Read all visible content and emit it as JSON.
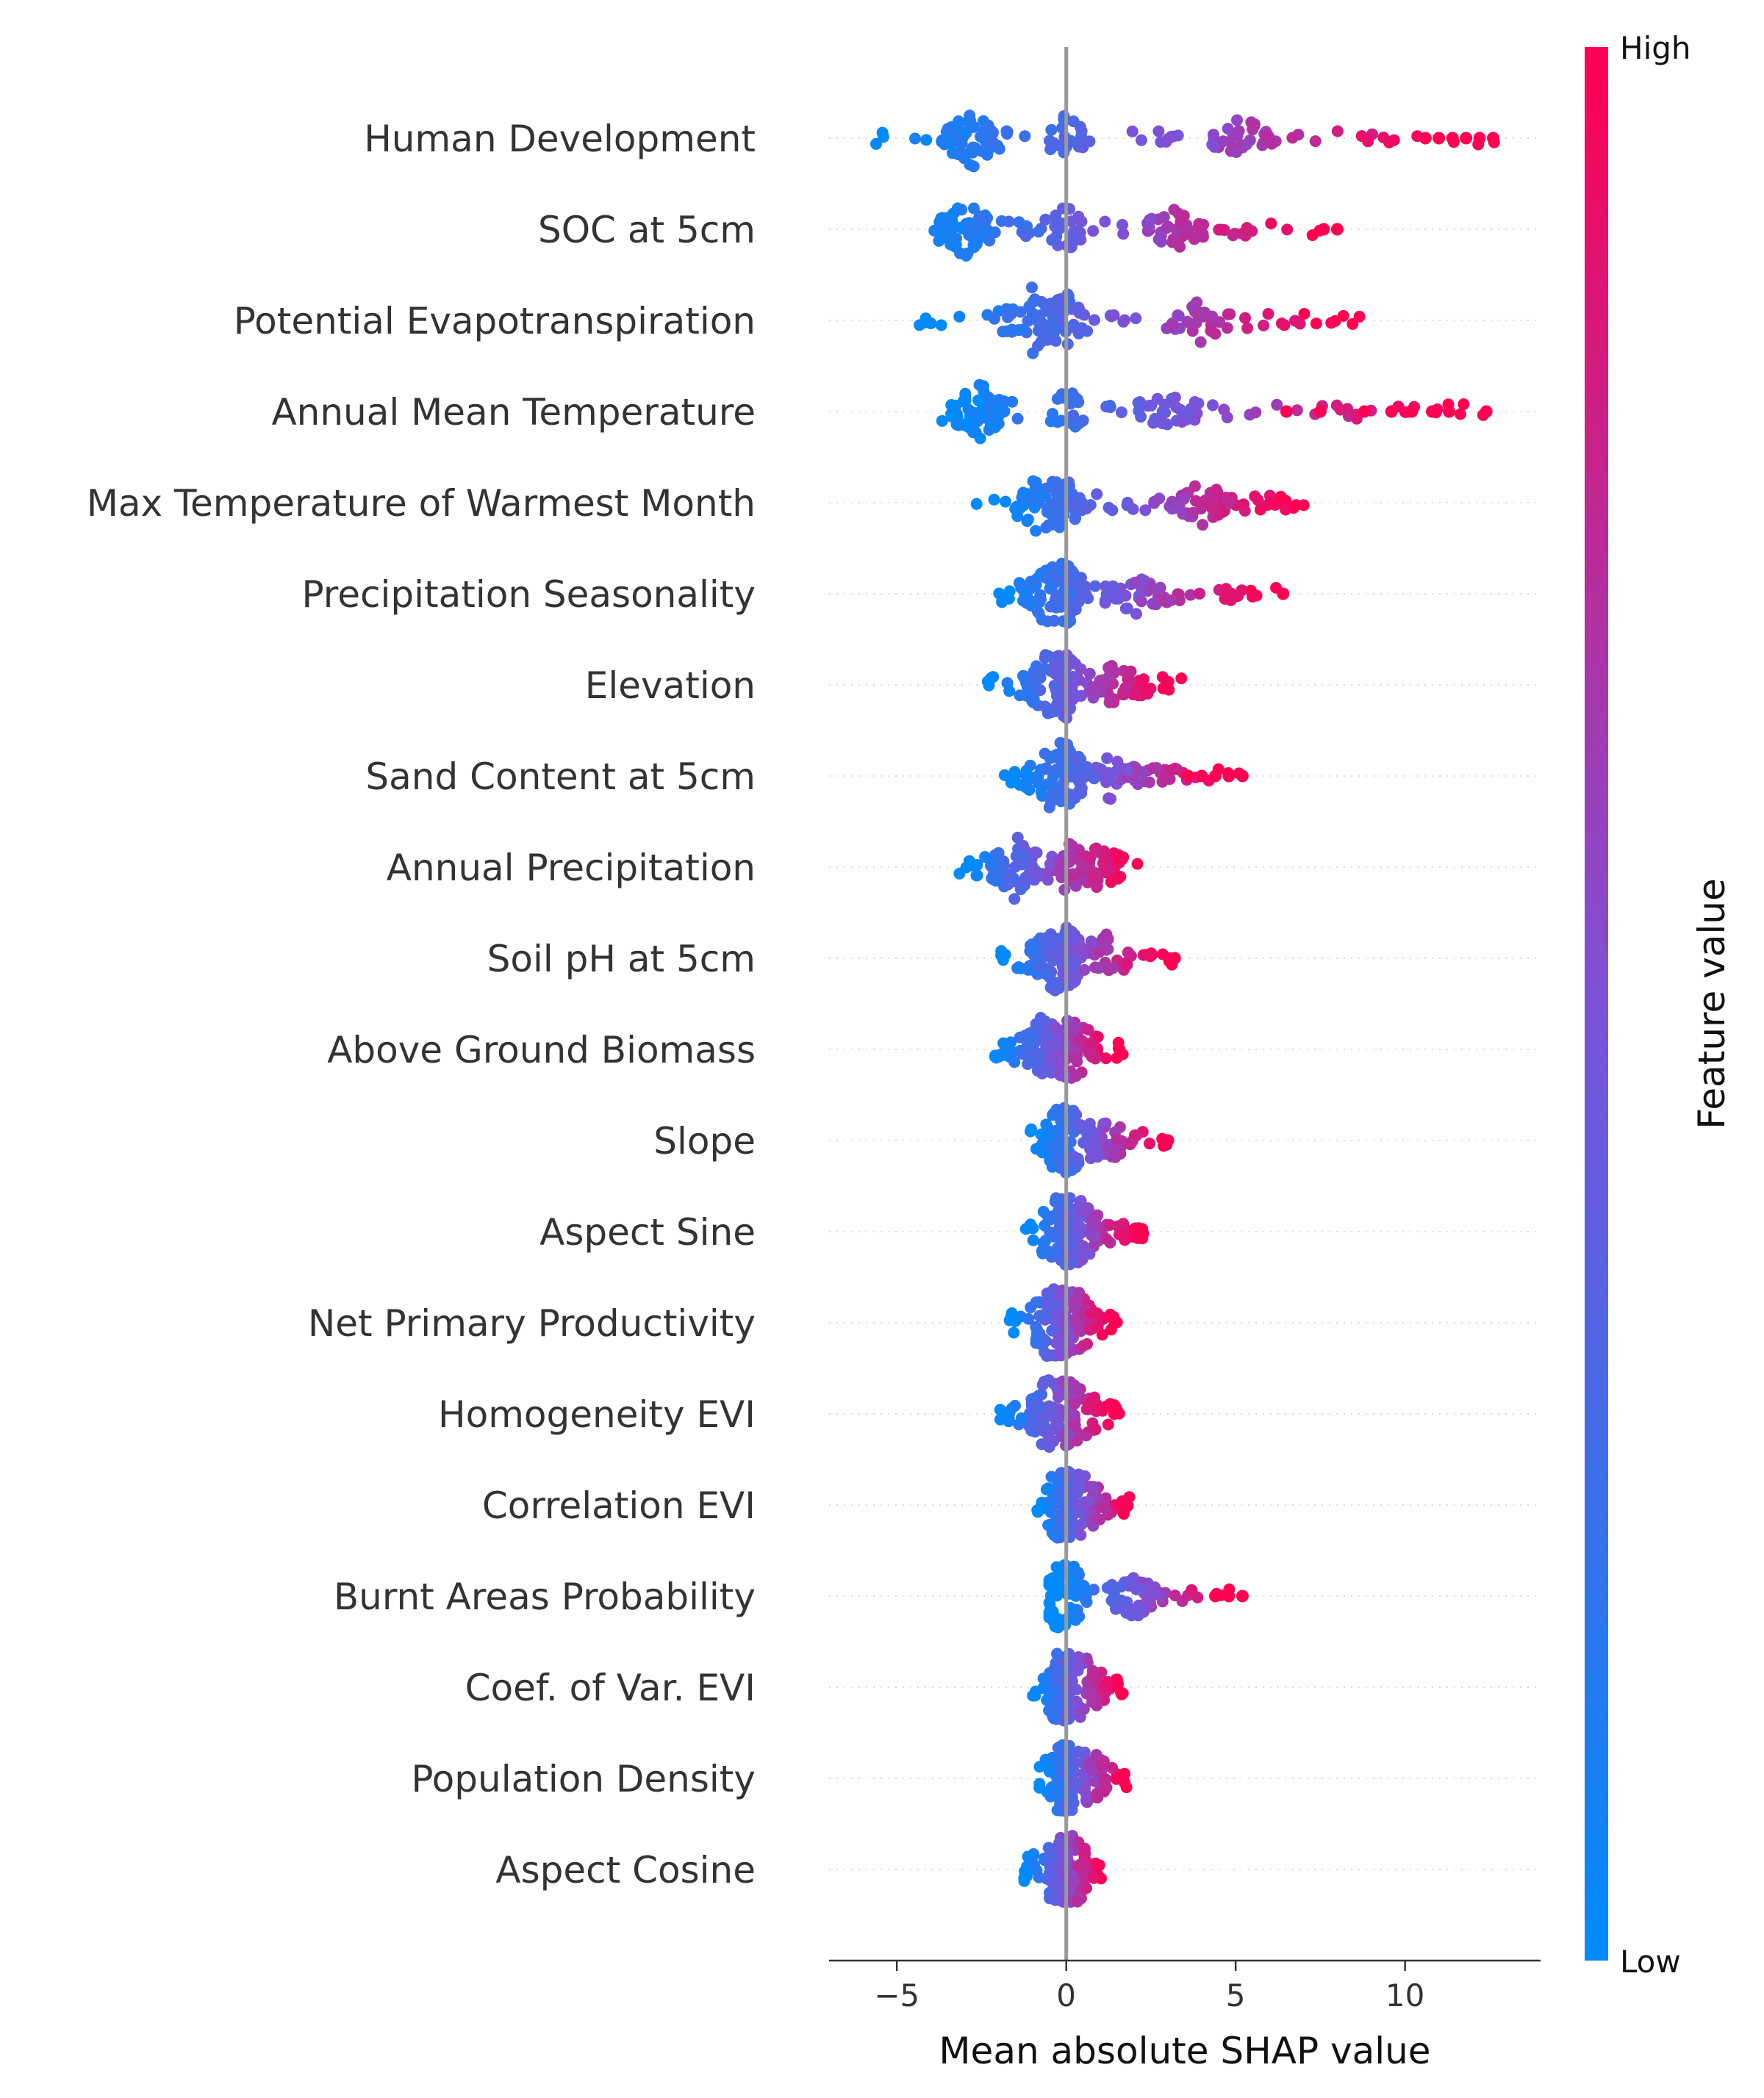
{
  "chart_data": {
    "type": "scatter",
    "subtype": "shap-beeswarm-summary",
    "title": "",
    "xlabel": "Mean absolute SHAP value",
    "xlim": [
      -7,
      14
    ],
    "xticks": [
      -5,
      0,
      5,
      10
    ],
    "xtick_labels": [
      "−5",
      "0",
      "5",
      "10"
    ],
    "zero_line": true,
    "grid": "dotted horizontal row guides",
    "legend": {
      "type": "colorbar",
      "placement": "right",
      "title": "Feature value",
      "high_label": "High",
      "low_label": "Low",
      "low_color": "#008BFB",
      "mid_color": "#7C52D8",
      "high_color": "#FF0052"
    },
    "features": [
      {
        "name": "Human Development",
        "min": -6.0,
        "max": 12.8,
        "low_center": -2.8,
        "high_center": 5.2,
        "outliers": [
          10.6,
          11.0,
          11.4,
          11.8,
          12.2,
          12.6
        ]
      },
      {
        "name": "SOC at 5cm",
        "min": -4.9,
        "max": 8.0,
        "low_center": -3.0,
        "high_center": 3.2,
        "outliers": [
          7.6,
          8.0
        ]
      },
      {
        "name": "Potential Evapotranspiration",
        "min": -4.5,
        "max": 8.9,
        "low_center": -1.0,
        "high_center": 4.0,
        "outliers": []
      },
      {
        "name": "Annual Mean Temperature",
        "min": -4.1,
        "max": 12.4,
        "low_center": -2.6,
        "high_center": 3.0,
        "outliers": [
          6.5,
          7.5,
          8.8,
          9.6,
          10.2,
          10.8,
          11.3,
          12.4
        ]
      },
      {
        "name": "Max Temperature of Warmest Month",
        "min": -2.7,
        "max": 7.4,
        "low_center": -0.8,
        "high_center": 4.0,
        "outliers": []
      },
      {
        "name": "Precipitation Seasonality",
        "min": -2.4,
        "max": 6.4,
        "low_center": -0.5,
        "high_center": 2.0,
        "outliers": [
          6.4
        ]
      },
      {
        "name": "Elevation",
        "min": -2.5,
        "max": 3.4,
        "low_center": -0.5,
        "high_center": 1.5,
        "outliers": []
      },
      {
        "name": "Sand Content at 5cm",
        "min": -2.0,
        "max": 5.2,
        "low_center": -0.4,
        "high_center": 1.3,
        "outliers": [
          3.6,
          4.0,
          4.4,
          4.8,
          5.2
        ]
      },
      {
        "name": "Annual Precipitation",
        "min": -3.3,
        "max": 2.3,
        "low_center": -1.5,
        "high_center": 1.0,
        "outliers": []
      },
      {
        "name": "Soil pH at 5cm",
        "min": -2.2,
        "max": 3.2,
        "low_center": -0.4,
        "high_center": 1.2,
        "outliers": [
          3.2
        ]
      },
      {
        "name": "Above Ground Biomass",
        "min": -2.2,
        "max": 1.7,
        "low_center": -0.8,
        "high_center": 0.5,
        "outliers": []
      },
      {
        "name": "Slope",
        "min": -1.1,
        "max": 3.0,
        "low_center": -0.1,
        "high_center": 1.2,
        "outliers": [
          3.0
        ]
      },
      {
        "name": "Aspect Sine",
        "min": -1.2,
        "max": 2.3,
        "low_center": -0.3,
        "high_center": 0.5,
        "outliers": []
      },
      {
        "name": "Net Primary Productivity",
        "min": -1.7,
        "max": 1.5,
        "low_center": -0.5,
        "high_center": 0.4,
        "outliers": []
      },
      {
        "name": "Homogeneity EVI",
        "min": -2.0,
        "max": 1.6,
        "low_center": -0.6,
        "high_center": 0.5,
        "outliers": []
      },
      {
        "name": "Correlation EVI",
        "min": -0.9,
        "max": 2.0,
        "low_center": -0.2,
        "high_center": 0.6,
        "outliers": []
      },
      {
        "name": "Burnt Areas Probability",
        "min": -0.5,
        "max": 5.2,
        "low_center": -0.1,
        "high_center": 2.0,
        "outliers": [
          4.4,
          4.8,
          5.2
        ]
      },
      {
        "name": "Coef. of Var. EVI",
        "min": -1.0,
        "max": 1.7,
        "low_center": -0.2,
        "high_center": 0.6,
        "outliers": []
      },
      {
        "name": "Population Density",
        "min": -0.8,
        "max": 1.9,
        "low_center": -0.1,
        "high_center": 0.8,
        "outliers": []
      },
      {
        "name": "Aspect Cosine",
        "min": -1.3,
        "max": 1.2,
        "low_center": -0.3,
        "high_center": 0.3,
        "outliers": []
      }
    ]
  }
}
